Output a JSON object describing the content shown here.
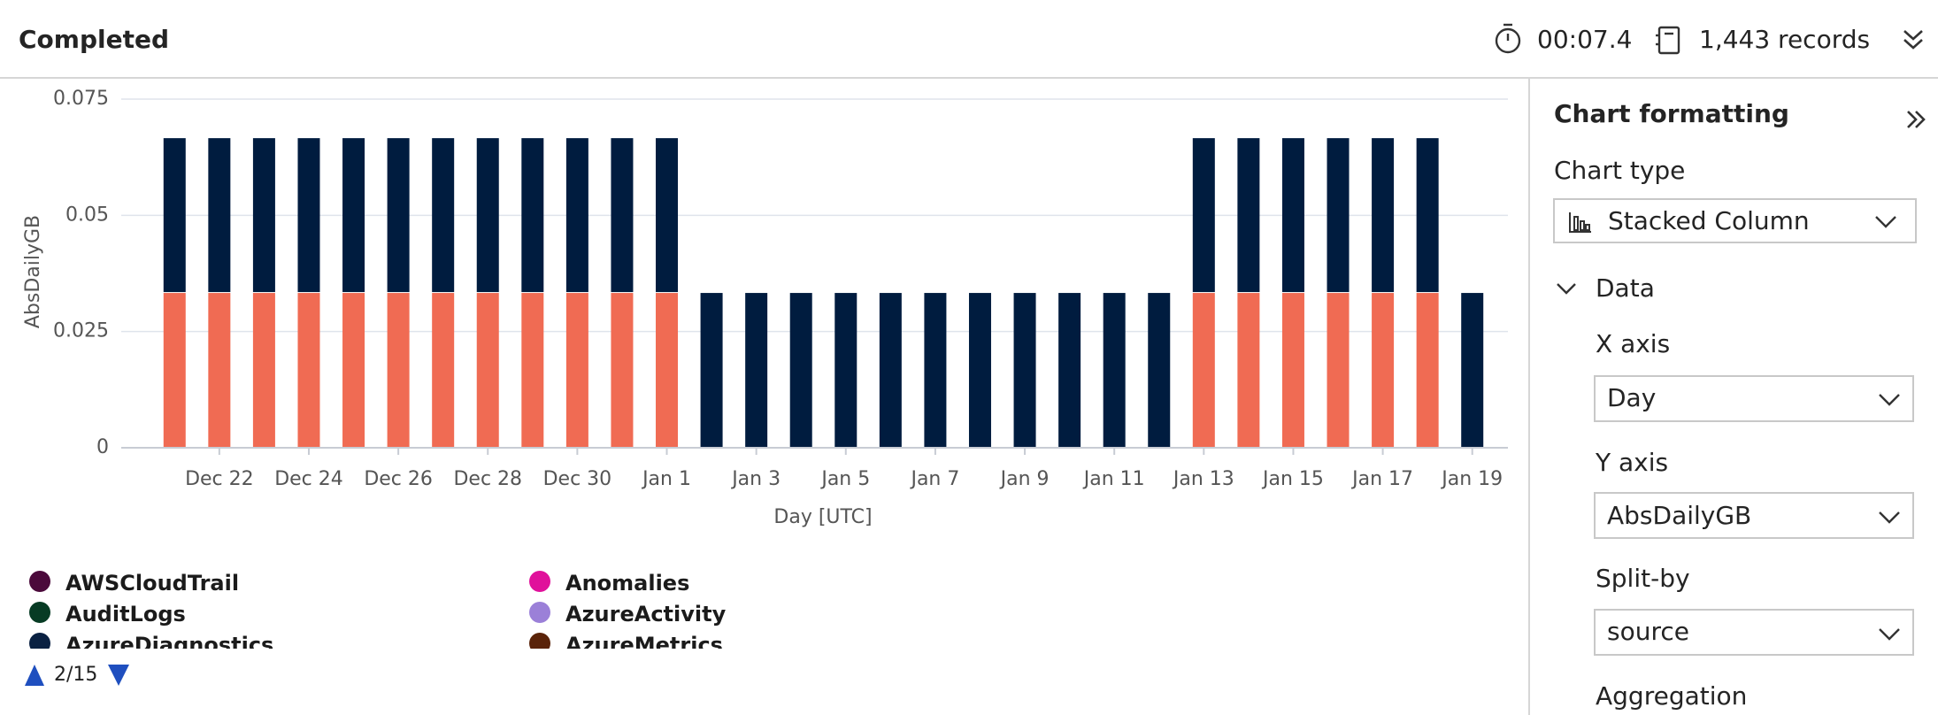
{
  "header": {
    "status": "Completed",
    "duration": "00:07.4",
    "records": "1,443 records"
  },
  "panel": {
    "title": "Chart formatting",
    "chart_type_label": "Chart type",
    "chart_type": "Stacked Column",
    "section": "Data",
    "x_axis_label": "X axis",
    "x_axis": "Day",
    "y_axis_label": "Y axis",
    "y_axis": "AbsDailyGB",
    "split_label": "Split-by",
    "split": "source",
    "aggregation_label": "Aggregation"
  },
  "chart_data": {
    "type": "stacked_bar",
    "x_label": "Day [UTC]",
    "y_label": "AbsDailyGB",
    "categories": [
      null,
      "Dec 22",
      null,
      "Dec 24",
      null,
      "Dec 26",
      null,
      "Dec 28",
      null,
      "Dec 30",
      null,
      "Jan 1",
      null,
      "Jan 3",
      null,
      "Jan 5",
      null,
      "Jan 7",
      null,
      "Jan 9",
      null,
      "Jan 11",
      null,
      "Jan 13",
      null,
      "Jan 15",
      null,
      "Jan 17",
      null,
      "Jan 19"
    ],
    "series": [
      {
        "color": "#f06b53",
        "values": [
          0.0333,
          0.0333,
          0.0333,
          0.0333,
          0.0333,
          0.0333,
          0.0333,
          0.0333,
          0.0333,
          0.0333,
          0.0333,
          0.0333,
          0,
          0,
          0,
          0,
          0,
          0,
          0,
          0,
          0,
          0,
          0,
          0.0333,
          0.0333,
          0.0333,
          0.0333,
          0.0333,
          0.0333,
          0
        ]
      },
      {
        "color": "#001c3f",
        "values": [
          0.0333,
          0.0333,
          0.0333,
          0.0333,
          0.0333,
          0.0333,
          0.0333,
          0.0333,
          0.0333,
          0.0333,
          0.0333,
          0.0333,
          0.0333,
          0.0333,
          0.0333,
          0.0333,
          0.0333,
          0.0333,
          0.0333,
          0.0333,
          0.0333,
          0.0333,
          0.0333,
          0.0333,
          0.0333,
          0.0333,
          0.0333,
          0.0333,
          0.0333,
          0.0333
        ]
      }
    ],
    "ylim": [
      0,
      0.075
    ],
    "yticks": [
      0,
      0.025,
      0.05,
      0.075
    ],
    "grid": true,
    "legend": [
      {
        "name": "AWSCloudTrail",
        "color": "#4b0a3b"
      },
      {
        "name": "Anomalies",
        "color": "#e0119b"
      },
      {
        "name": "AuditLogs",
        "color": "#073b24"
      },
      {
        "name": "AzureActivity",
        "color": "#9b80d8"
      },
      {
        "name": "AzureDiagnostics",
        "color": "#0a2142"
      },
      {
        "name": "AzureMetrics",
        "color": "#5a2309"
      }
    ],
    "legend_page": "2/15"
  }
}
